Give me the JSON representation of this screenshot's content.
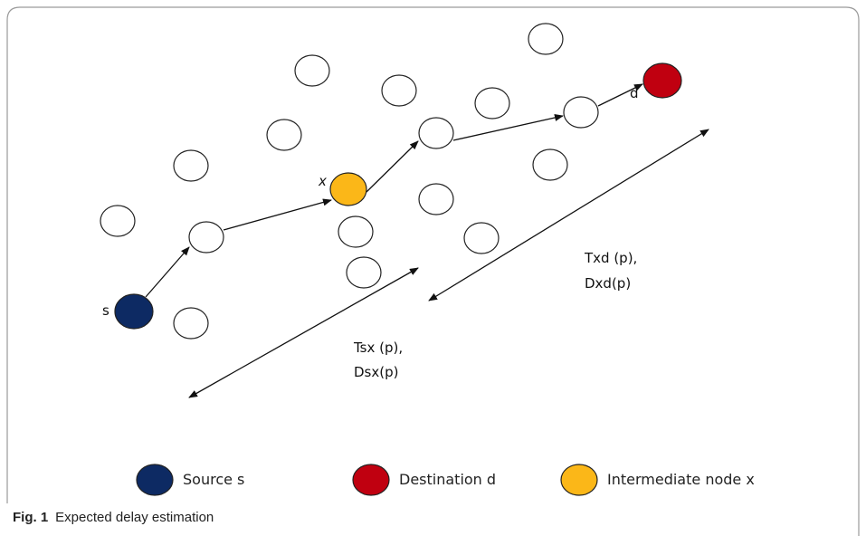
{
  "figure": {
    "caption_label": "Fig. 1",
    "caption_text": "Expected delay estimation"
  },
  "nodes": {
    "source_label": "s",
    "intermediate_label": "x",
    "destination_label": "d"
  },
  "annotations": {
    "segment_sx_line1": "Tsx (p),",
    "segment_sx_line2": "Dsx(p)",
    "segment_xd_line1": "Txd (p),",
    "segment_xd_line2": "Dxd(p)"
  },
  "legend": {
    "source": "Source s",
    "destination": "Destination d",
    "intermediate": "Intermediate node x"
  },
  "colors": {
    "source": "#0d2a63",
    "destination": "#c00010",
    "intermediate": "#fbb718",
    "frame": "#9a9a9a",
    "stroke": "#222222"
  }
}
